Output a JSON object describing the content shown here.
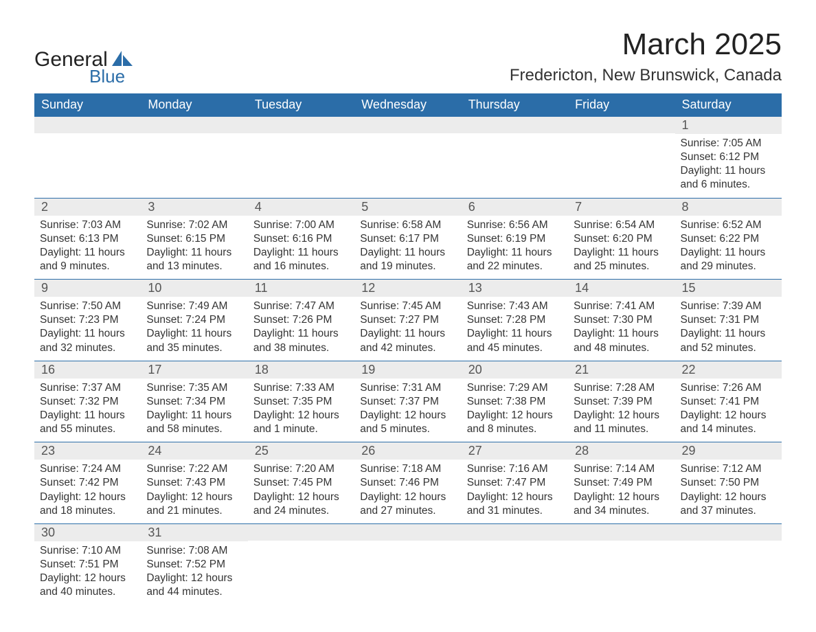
{
  "brand": {
    "name1": "General",
    "name2": "Blue",
    "accent": "#2b6da8"
  },
  "title": "March 2025",
  "location": "Fredericton, New Brunswick, Canada",
  "columns": [
    "Sunday",
    "Monday",
    "Tuesday",
    "Wednesday",
    "Thursday",
    "Friday",
    "Saturday"
  ],
  "header_bg": "#2b6da8",
  "header_fg": "#ffffff",
  "daynum_bg": "#ececec",
  "row_border": "#2b6da8",
  "text_color": "#333333",
  "cell_fontsize": 15.5,
  "weeks": [
    [
      {
        "n": "",
        "l": []
      },
      {
        "n": "",
        "l": []
      },
      {
        "n": "",
        "l": []
      },
      {
        "n": "",
        "l": []
      },
      {
        "n": "",
        "l": []
      },
      {
        "n": "",
        "l": []
      },
      {
        "n": "1",
        "l": [
          "Sunrise: 7:05 AM",
          "Sunset: 6:12 PM",
          "Daylight: 11 hours",
          "and 6 minutes."
        ]
      }
    ],
    [
      {
        "n": "2",
        "l": [
          "Sunrise: 7:03 AM",
          "Sunset: 6:13 PM",
          "Daylight: 11 hours",
          "and 9 minutes."
        ]
      },
      {
        "n": "3",
        "l": [
          "Sunrise: 7:02 AM",
          "Sunset: 6:15 PM",
          "Daylight: 11 hours",
          "and 13 minutes."
        ]
      },
      {
        "n": "4",
        "l": [
          "Sunrise: 7:00 AM",
          "Sunset: 6:16 PM",
          "Daylight: 11 hours",
          "and 16 minutes."
        ]
      },
      {
        "n": "5",
        "l": [
          "Sunrise: 6:58 AM",
          "Sunset: 6:17 PM",
          "Daylight: 11 hours",
          "and 19 minutes."
        ]
      },
      {
        "n": "6",
        "l": [
          "Sunrise: 6:56 AM",
          "Sunset: 6:19 PM",
          "Daylight: 11 hours",
          "and 22 minutes."
        ]
      },
      {
        "n": "7",
        "l": [
          "Sunrise: 6:54 AM",
          "Sunset: 6:20 PM",
          "Daylight: 11 hours",
          "and 25 minutes."
        ]
      },
      {
        "n": "8",
        "l": [
          "Sunrise: 6:52 AM",
          "Sunset: 6:22 PM",
          "Daylight: 11 hours",
          "and 29 minutes."
        ]
      }
    ],
    [
      {
        "n": "9",
        "l": [
          "Sunrise: 7:50 AM",
          "Sunset: 7:23 PM",
          "Daylight: 11 hours",
          "and 32 minutes."
        ]
      },
      {
        "n": "10",
        "l": [
          "Sunrise: 7:49 AM",
          "Sunset: 7:24 PM",
          "Daylight: 11 hours",
          "and 35 minutes."
        ]
      },
      {
        "n": "11",
        "l": [
          "Sunrise: 7:47 AM",
          "Sunset: 7:26 PM",
          "Daylight: 11 hours",
          "and 38 minutes."
        ]
      },
      {
        "n": "12",
        "l": [
          "Sunrise: 7:45 AM",
          "Sunset: 7:27 PM",
          "Daylight: 11 hours",
          "and 42 minutes."
        ]
      },
      {
        "n": "13",
        "l": [
          "Sunrise: 7:43 AM",
          "Sunset: 7:28 PM",
          "Daylight: 11 hours",
          "and 45 minutes."
        ]
      },
      {
        "n": "14",
        "l": [
          "Sunrise: 7:41 AM",
          "Sunset: 7:30 PM",
          "Daylight: 11 hours",
          "and 48 minutes."
        ]
      },
      {
        "n": "15",
        "l": [
          "Sunrise: 7:39 AM",
          "Sunset: 7:31 PM",
          "Daylight: 11 hours",
          "and 52 minutes."
        ]
      }
    ],
    [
      {
        "n": "16",
        "l": [
          "Sunrise: 7:37 AM",
          "Sunset: 7:32 PM",
          "Daylight: 11 hours",
          "and 55 minutes."
        ]
      },
      {
        "n": "17",
        "l": [
          "Sunrise: 7:35 AM",
          "Sunset: 7:34 PM",
          "Daylight: 11 hours",
          "and 58 minutes."
        ]
      },
      {
        "n": "18",
        "l": [
          "Sunrise: 7:33 AM",
          "Sunset: 7:35 PM",
          "Daylight: 12 hours",
          "and 1 minute."
        ]
      },
      {
        "n": "19",
        "l": [
          "Sunrise: 7:31 AM",
          "Sunset: 7:37 PM",
          "Daylight: 12 hours",
          "and 5 minutes."
        ]
      },
      {
        "n": "20",
        "l": [
          "Sunrise: 7:29 AM",
          "Sunset: 7:38 PM",
          "Daylight: 12 hours",
          "and 8 minutes."
        ]
      },
      {
        "n": "21",
        "l": [
          "Sunrise: 7:28 AM",
          "Sunset: 7:39 PM",
          "Daylight: 12 hours",
          "and 11 minutes."
        ]
      },
      {
        "n": "22",
        "l": [
          "Sunrise: 7:26 AM",
          "Sunset: 7:41 PM",
          "Daylight: 12 hours",
          "and 14 minutes."
        ]
      }
    ],
    [
      {
        "n": "23",
        "l": [
          "Sunrise: 7:24 AM",
          "Sunset: 7:42 PM",
          "Daylight: 12 hours",
          "and 18 minutes."
        ]
      },
      {
        "n": "24",
        "l": [
          "Sunrise: 7:22 AM",
          "Sunset: 7:43 PM",
          "Daylight: 12 hours",
          "and 21 minutes."
        ]
      },
      {
        "n": "25",
        "l": [
          "Sunrise: 7:20 AM",
          "Sunset: 7:45 PM",
          "Daylight: 12 hours",
          "and 24 minutes."
        ]
      },
      {
        "n": "26",
        "l": [
          "Sunrise: 7:18 AM",
          "Sunset: 7:46 PM",
          "Daylight: 12 hours",
          "and 27 minutes."
        ]
      },
      {
        "n": "27",
        "l": [
          "Sunrise: 7:16 AM",
          "Sunset: 7:47 PM",
          "Daylight: 12 hours",
          "and 31 minutes."
        ]
      },
      {
        "n": "28",
        "l": [
          "Sunrise: 7:14 AM",
          "Sunset: 7:49 PM",
          "Daylight: 12 hours",
          "and 34 minutes."
        ]
      },
      {
        "n": "29",
        "l": [
          "Sunrise: 7:12 AM",
          "Sunset: 7:50 PM",
          "Daylight: 12 hours",
          "and 37 minutes."
        ]
      }
    ],
    [
      {
        "n": "30",
        "l": [
          "Sunrise: 7:10 AM",
          "Sunset: 7:51 PM",
          "Daylight: 12 hours",
          "and 40 minutes."
        ]
      },
      {
        "n": "31",
        "l": [
          "Sunrise: 7:08 AM",
          "Sunset: 7:52 PM",
          "Daylight: 12 hours",
          "and 44 minutes."
        ]
      },
      {
        "n": "",
        "l": []
      },
      {
        "n": "",
        "l": []
      },
      {
        "n": "",
        "l": []
      },
      {
        "n": "",
        "l": []
      },
      {
        "n": "",
        "l": []
      }
    ]
  ]
}
